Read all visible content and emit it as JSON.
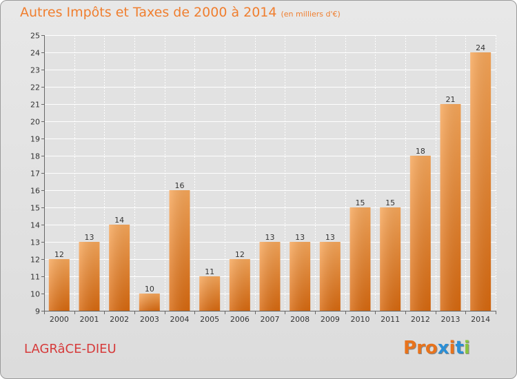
{
  "header": {
    "title": "Autres Impôts et Taxes de 2000 à 2014",
    "subtitle": "(en milliers d'€)"
  },
  "footer": {
    "commune": "LAGRâCE-DIEU",
    "logo": "Proxiti"
  },
  "colors": {
    "bar": "#f07e2e",
    "bar_light": "#f5a55c",
    "bar_dark": "#d96a18",
    "title": "#f07e2e",
    "commune": "#d63a3a",
    "logo_letters": [
      "#e8731c",
      "#e8731c",
      "#e8731c",
      "#2a8fd6",
      "#e8731c",
      "#2a8fd6",
      "#8ac43f"
    ]
  },
  "chart_data": {
    "type": "bar",
    "title": "Autres Impôts et Taxes de 2000 à 2014",
    "subtitle": "(en milliers d'€)",
    "categories": [
      "2000",
      "2001",
      "2002",
      "2003",
      "2004",
      "2005",
      "2006",
      "2007",
      "2008",
      "2009",
      "2010",
      "2011",
      "2012",
      "2013",
      "2014"
    ],
    "values": [
      12,
      13,
      14,
      10,
      16,
      11,
      12,
      13,
      13,
      13,
      15,
      15,
      18,
      21,
      24
    ],
    "ylim": [
      9,
      25
    ],
    "yticks": [
      9,
      10,
      11,
      12,
      13,
      14,
      15,
      16,
      17,
      18,
      19,
      20,
      21,
      22,
      23,
      24,
      25
    ],
    "grid": true,
    "data_labels": true
  }
}
